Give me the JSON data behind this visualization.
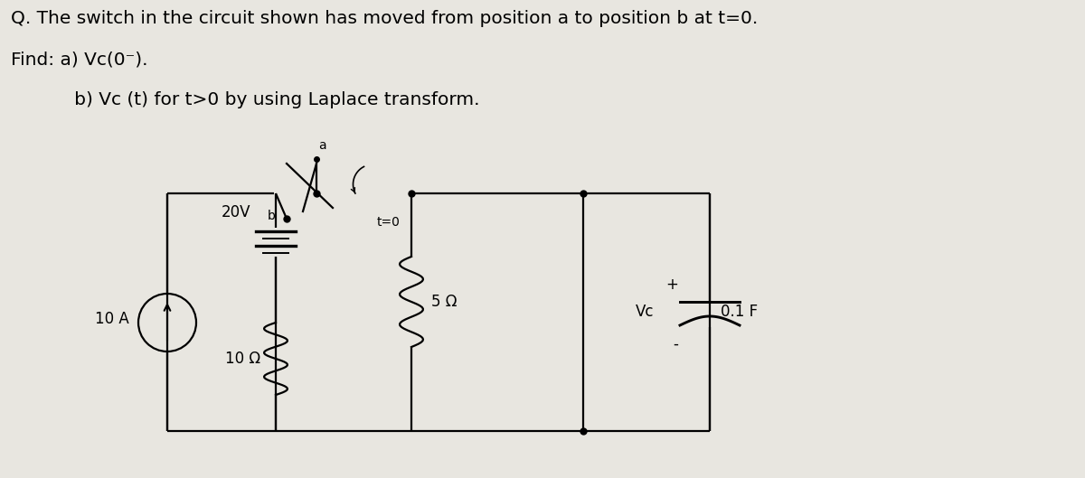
{
  "bg_color": "#e8e6e0",
  "text_color": "#000000",
  "title_line1": "Q. The switch in the circuit shown has moved from position a to position b at t=0.",
  "title_line2": "Find: a) Vc(0⁻).",
  "title_line3": "           b) Vc (t) for t>0 by using Laplace transform.",
  "label_10A": "10 A",
  "label_20V": "20V",
  "label_b": "b",
  "label_a": "a",
  "label_t0": "t=0",
  "label_10ohm": "10 Ω",
  "label_5ohm": "5 Ω",
  "label_Vc": "Vc",
  "label_01F": "0.1 F",
  "label_plus": "+",
  "label_minus": "-",
  "font_size_title": 14.5,
  "font_size_labels": 12
}
